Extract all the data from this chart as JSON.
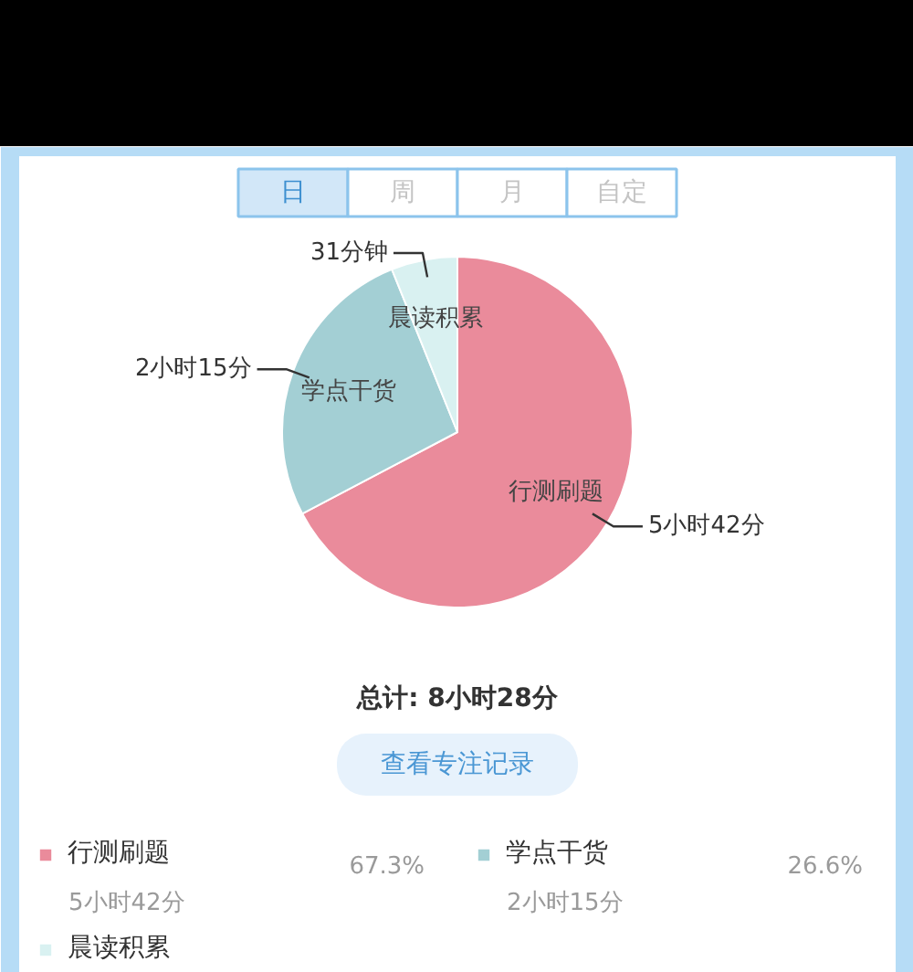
{
  "chart_data": {
    "type": "pie",
    "categories": [
      "行测刷题",
      "学点干货",
      "晨读积累"
    ],
    "values": [
      67.3,
      26.6,
      6.1
    ],
    "colors": [
      "#ea8b9b",
      "#a3cfd4",
      "#d9f1f1"
    ],
    "value_labels": [
      "67.3%",
      "26.6%",
      null
    ],
    "legend": "bottom",
    "annotations": [
      "日",
      "周",
      "月",
      "自定",
      "5小时42分",
      "2小时15分",
      "31分钟",
      "总计: 8小时28分",
      "查看专注记录"
    ]
  }
}
